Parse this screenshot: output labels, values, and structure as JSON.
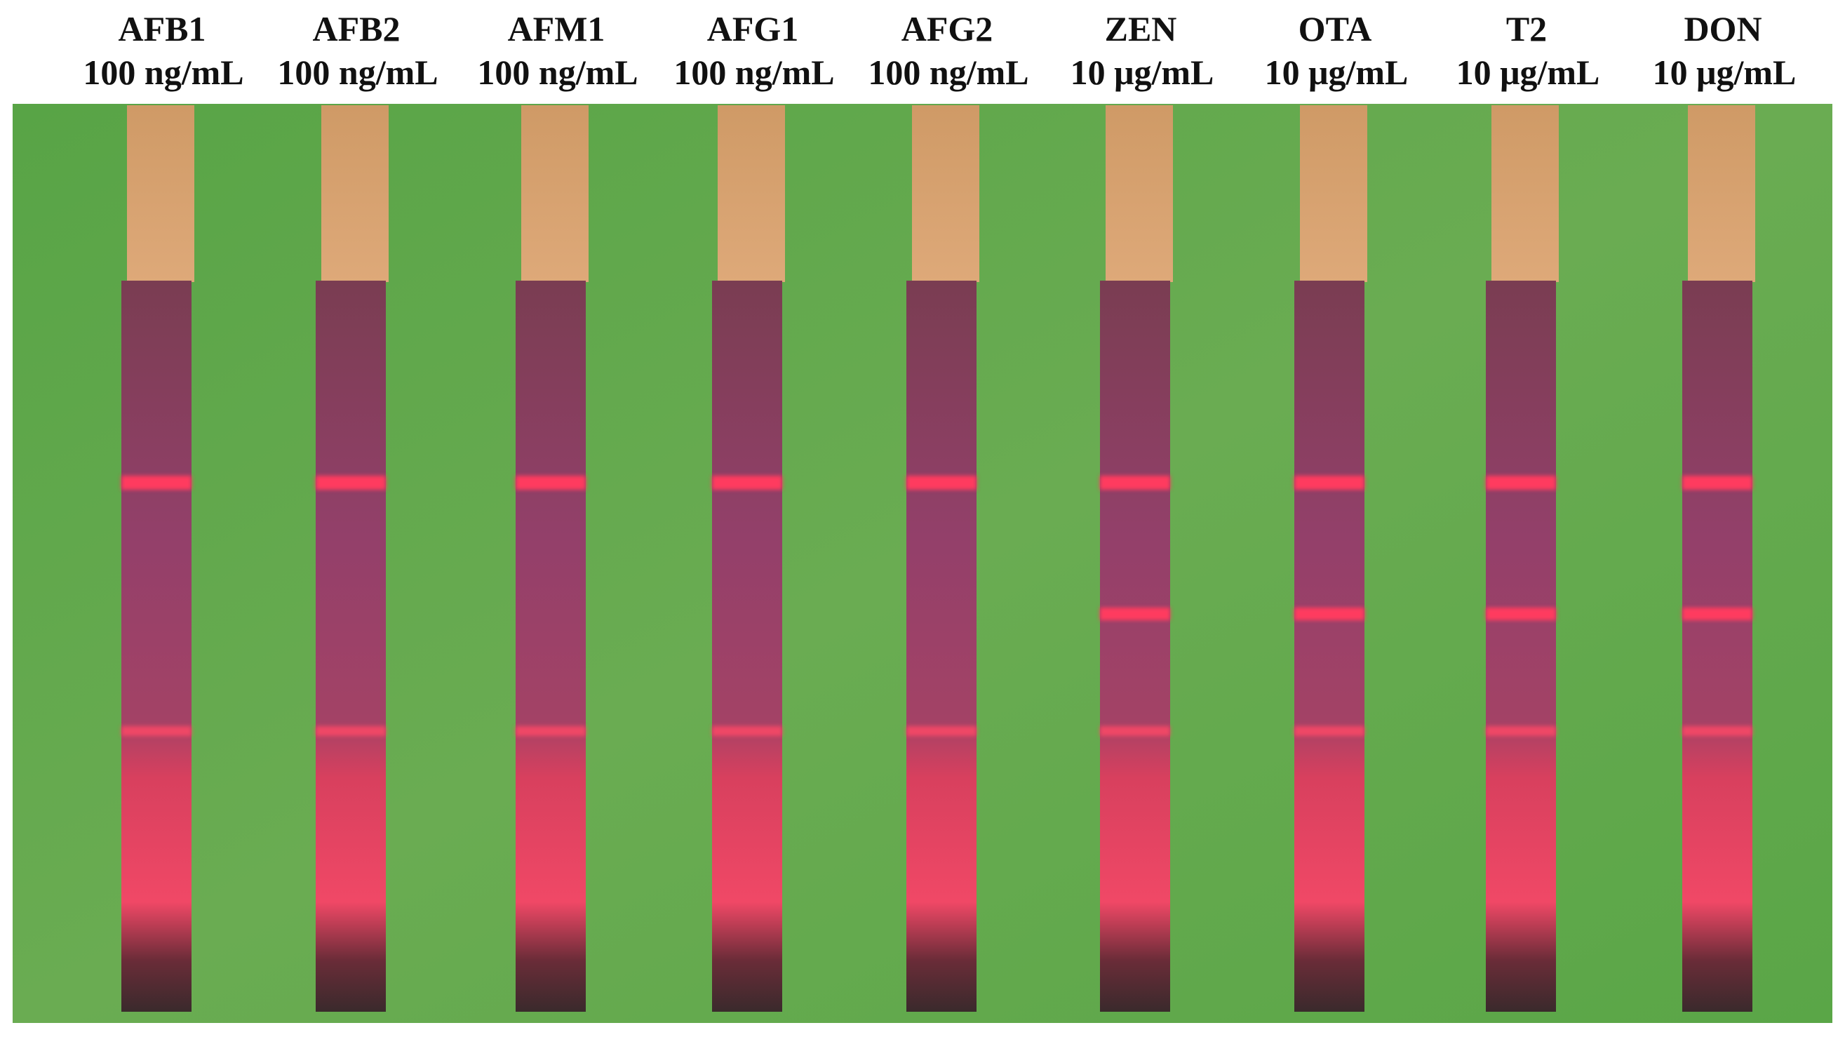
{
  "strips": [
    {
      "analyte": "AFB1",
      "concentration": "100 ng/mL"
    },
    {
      "analyte": "AFB2",
      "concentration": "100 ng/mL"
    },
    {
      "analyte": "AFM1",
      "concentration": "100 ng/mL"
    },
    {
      "analyte": "AFG1",
      "concentration": "100 ng/mL"
    },
    {
      "analyte": "AFG2",
      "concentration": "100 ng/mL"
    },
    {
      "analyte": "ZEN",
      "concentration": "10 μg/mL"
    },
    {
      "analyte": "OTA",
      "concentration": "10 μg/mL"
    },
    {
      "analyte": "T2",
      "concentration": "10 μg/mL"
    },
    {
      "analyte": "DON",
      "concentration": "10 μg/mL"
    }
  ]
}
